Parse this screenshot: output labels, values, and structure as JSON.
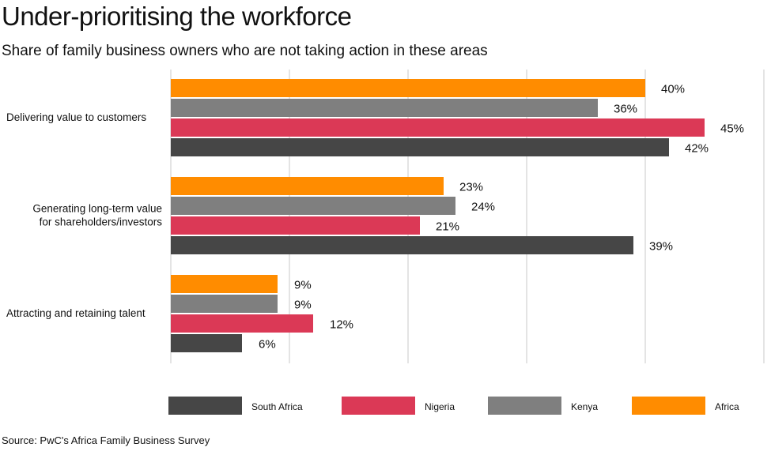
{
  "chart_data": {
    "type": "bar",
    "orientation": "horizontal",
    "title": "Under-prioritising the workforce",
    "subtitle": "Share of family business owners who are not taking action in these areas",
    "source": "Source: PwC's Africa Family Business Survey",
    "categories": [
      [
        "Delivering value to customers"
      ],
      [
        "Generating long-term value",
        "for shareholders/investors"
      ],
      [
        "Attracting and retaining talent"
      ]
    ],
    "series": [
      {
        "name": "Africa",
        "color": "#FF8C00",
        "values": [
          40,
          23,
          9
        ]
      },
      {
        "name": "Kenya",
        "color": "#7F7F7F",
        "values": [
          36,
          24,
          9
        ]
      },
      {
        "name": "Nigeria",
        "color": "#DB3956",
        "values": [
          45,
          21,
          12
        ]
      },
      {
        "name": "South Africa",
        "color": "#464646",
        "values": [
          42,
          39,
          6
        ]
      }
    ],
    "legend_order": [
      "South Africa",
      "Nigeria",
      "Kenya",
      "Africa"
    ],
    "xlim": [
      0,
      50
    ],
    "gridlines": [
      0,
      10,
      20,
      30,
      40,
      50
    ],
    "value_suffix": "%",
    "legend_position": "bottom"
  }
}
